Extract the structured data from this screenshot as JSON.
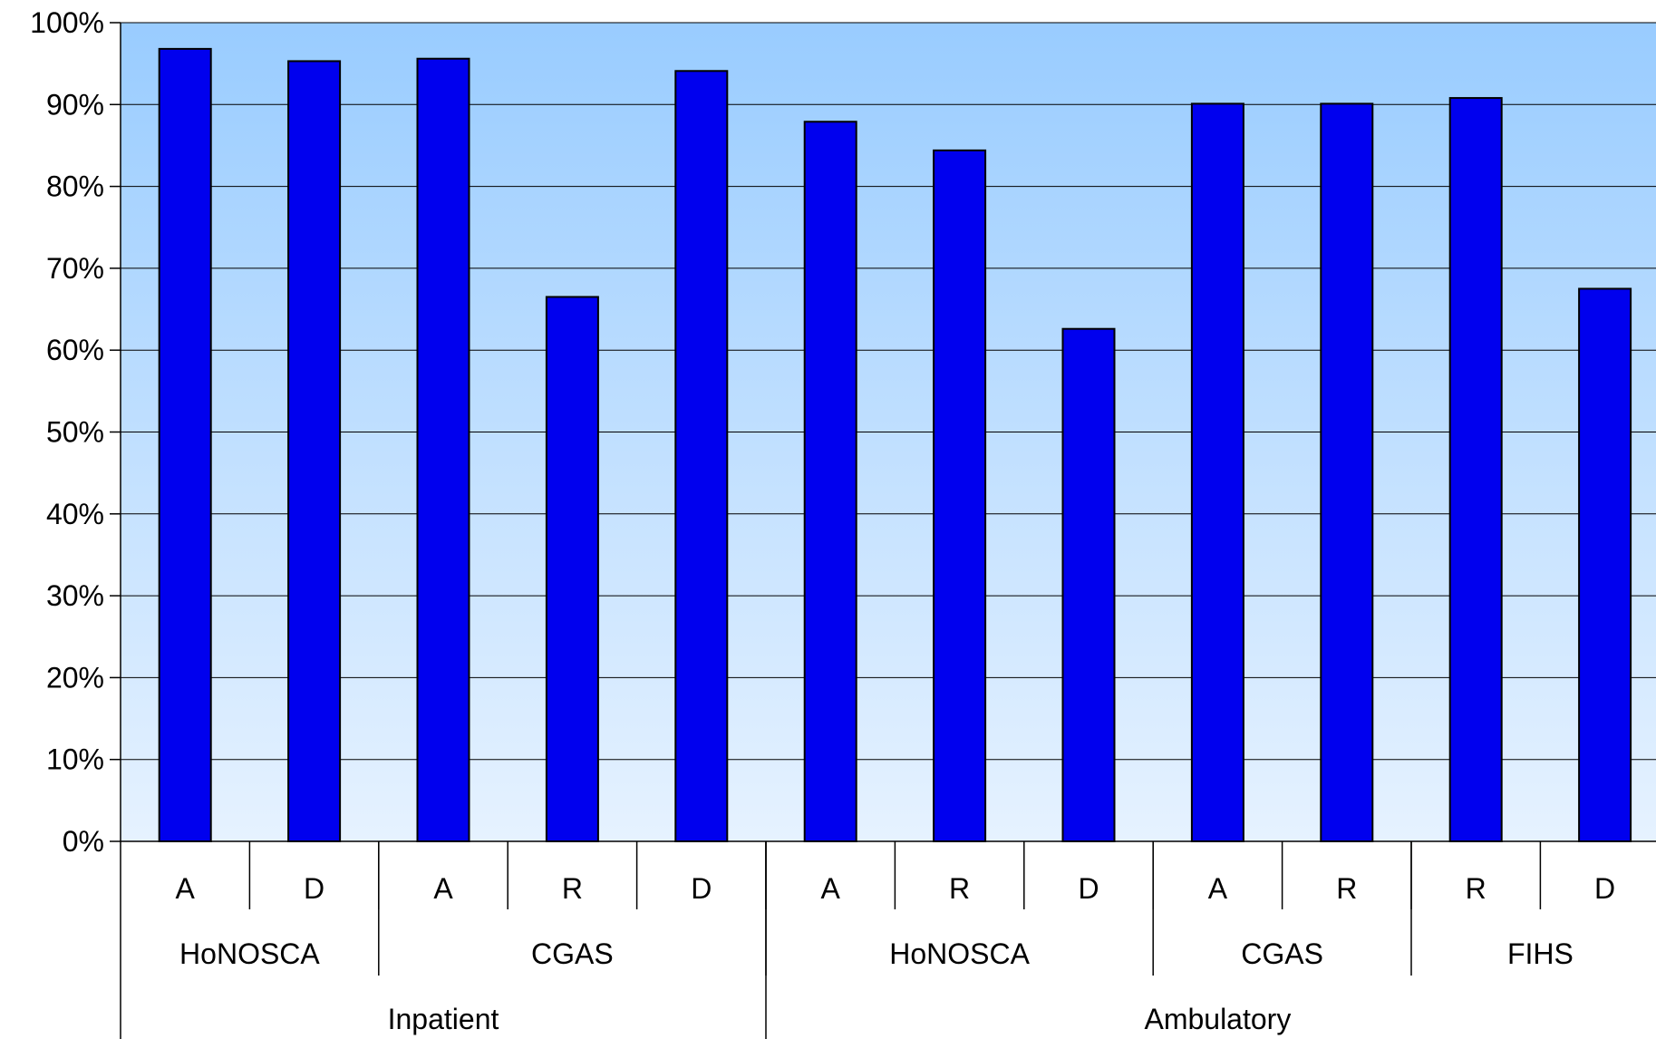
{
  "chart_data": {
    "type": "bar",
    "title": "",
    "xlabel": "",
    "ylabel": "",
    "ylim": [
      0,
      100
    ],
    "y_ticks": [
      "0%",
      "10%",
      "20%",
      "30%",
      "40%",
      "50%",
      "60%",
      "70%",
      "80%",
      "90%",
      "100%"
    ],
    "grid": true,
    "categories": [
      "A",
      "D",
      "A",
      "R",
      "D",
      "A",
      "R",
      "D",
      "A",
      "R",
      "R",
      "D"
    ],
    "values": [
      96.8,
      95.3,
      95.6,
      66.5,
      94.1,
      87.9,
      84.4,
      62.6,
      90.1,
      90.1,
      90.8,
      67.5
    ],
    "groups_level1": [
      {
        "label": "HoNOSCA",
        "span": 2
      },
      {
        "label": "CGAS",
        "span": 3
      },
      {
        "label": "HoNOSCA",
        "span": 3
      },
      {
        "label": "CGAS",
        "span": 2
      },
      {
        "label": "FIHS",
        "span": 2
      }
    ],
    "groups_level2": [
      {
        "label": "Inpatient",
        "span": 5
      },
      {
        "label": "Ambulatory",
        "span": 7
      }
    ],
    "colors": {
      "bar": "#0000ee",
      "bar_stroke": "#000000",
      "bg_top": "#99ccff",
      "bg_bottom": "#e6f2ff"
    }
  }
}
